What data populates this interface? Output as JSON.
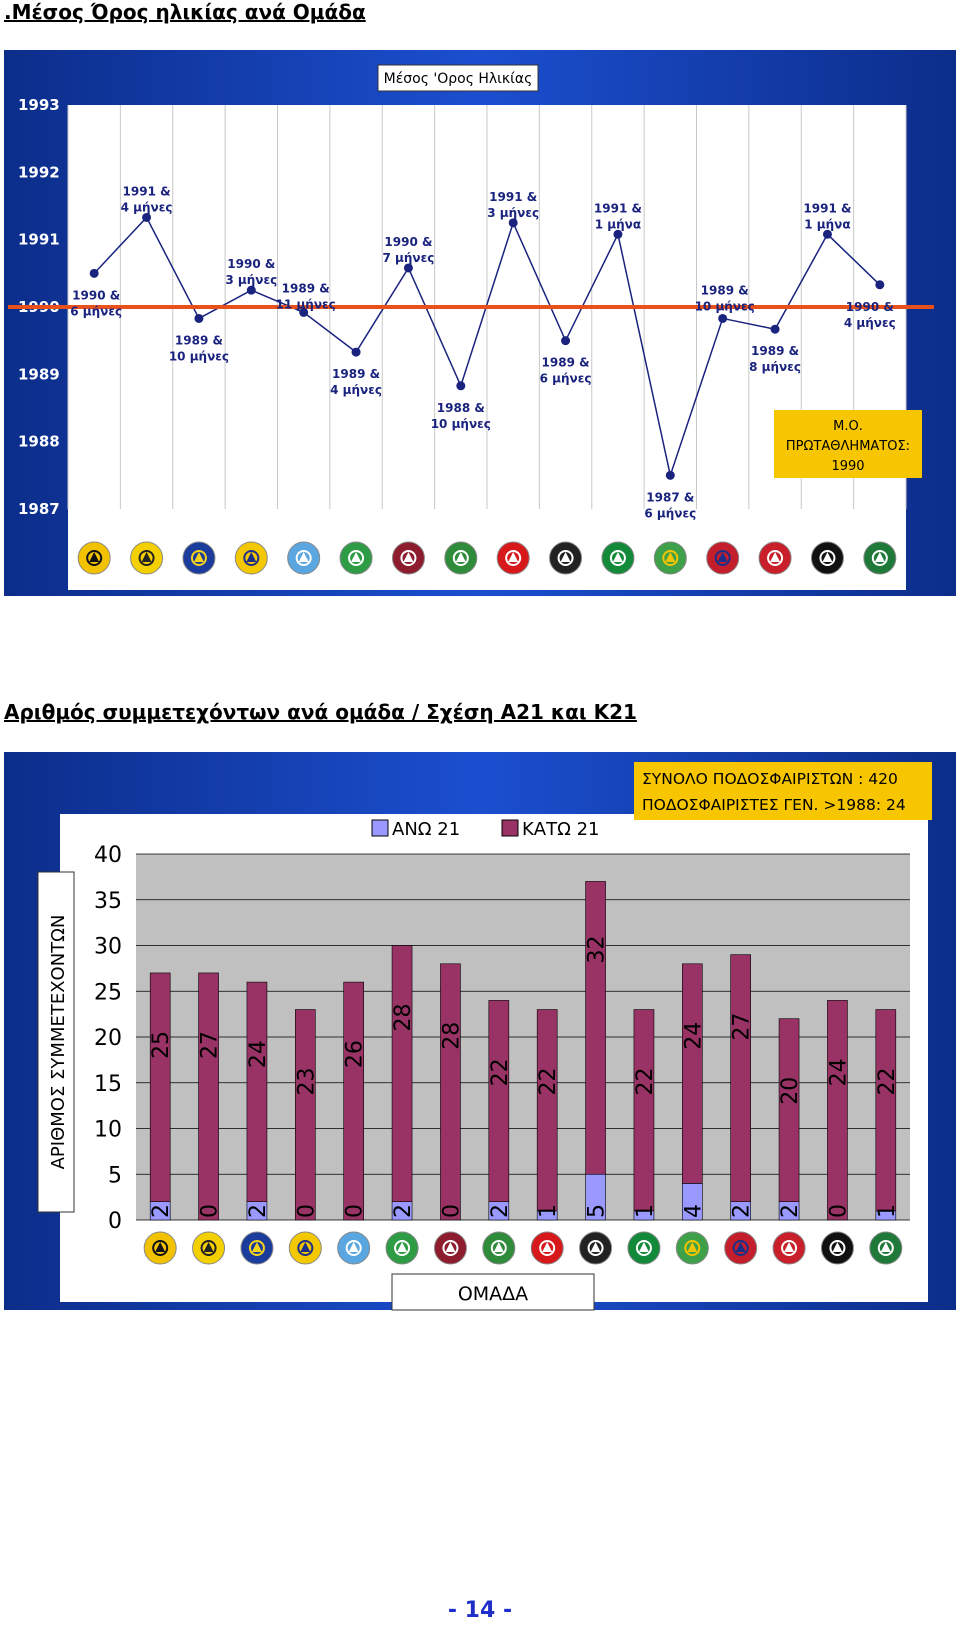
{
  "page": {
    "heading1": ".Μέσος Όρος ηλικίας ανά Ομάδα",
    "heading2": "Αριθμός συμμετεχόντων ανά ομάδα / Σχέση Α21 και Κ21",
    "page_number": "- 14 -"
  },
  "chart_data": [
    {
      "type": "line",
      "title": "Μέσος 'Ορος Ηλικίας",
      "ylim": [
        1987,
        1993
      ],
      "y_ticks": [
        "1987",
        "1988",
        "1989",
        "1990",
        "1991",
        "1992",
        "1993"
      ],
      "reference_line": {
        "value": 1990,
        "color": "#e8501c"
      },
      "x_axis": "team logos",
      "grid": "vertical",
      "values": [
        1990.5,
        1991.33,
        1989.83,
        1990.25,
        1989.92,
        1989.33,
        1990.58,
        1988.83,
        1991.25,
        1989.5,
        1991.08,
        1987.5,
        1989.83,
        1989.67,
        1991.08,
        1990.33
      ],
      "point_labels": [
        [
          "1990 &",
          "6 μήνες"
        ],
        [
          "1991 &",
          "4 μήνες"
        ],
        [
          "1989 &",
          "10 μήνες"
        ],
        [
          "1990 &",
          "3 μήνες"
        ],
        [
          "1989 &",
          "11 μήνες"
        ],
        [
          "1989 &",
          "4 μήνες"
        ],
        [
          "1990 &",
          "7 μήνες"
        ],
        [
          "1988 &",
          "10 μήνες"
        ],
        [
          "1991 &",
          "3 μήνες"
        ],
        [
          "1989 &",
          "6 μήνες"
        ],
        [
          "1991 &",
          "1 μήνα"
        ],
        [
          "1987 &",
          "6 μήνες"
        ],
        [
          "1989 &",
          "10 μήνες"
        ],
        [
          "1989 &",
          "8 μήνες"
        ],
        [
          "1991 &",
          "1 μήνα"
        ],
        [
          "1990 &",
          "4 μήνες"
        ]
      ],
      "annotation": [
        "Μ.Ο.",
        "ΠΡΩΤΑΘΛΗΜΑΤΟΣ:",
        "1990"
      ],
      "line_color": "#1a237e",
      "annotation_color": "#f7c600"
    },
    {
      "type": "bar",
      "stacked": true,
      "ylabel": "ΑΡΙΘΜΟΣ ΣΥΜΜΕΤΕΧΟΝΤΩΝ",
      "xlabel": "ΟΜΑΔΑ",
      "ylim": [
        0,
        40
      ],
      "y_ticks": [
        "0",
        "5",
        "10",
        "15",
        "20",
        "25",
        "30",
        "35",
        "40"
      ],
      "legend": "top",
      "grid": true,
      "series": [
        {
          "name": "ΑΝΩ 21",
          "color": "#9999ff",
          "values": [
            2,
            0,
            2,
            0,
            0,
            2,
            0,
            2,
            1,
            5,
            1,
            4,
            2,
            2,
            0,
            1
          ]
        },
        {
          "name": "ΚΑΤΩ 21",
          "color": "#993366",
          "values": [
            25,
            27,
            24,
            23,
            26,
            28,
            28,
            22,
            22,
            32,
            22,
            24,
            27,
            20,
            24,
            22
          ]
        }
      ],
      "bottom_labels": [
        "2",
        "0",
        "2",
        "0",
        "0",
        "2",
        "0",
        "2",
        "1",
        "5",
        "1",
        "4",
        "2",
        "2",
        "0",
        "1"
      ],
      "top_labels": [
        "25",
        "27",
        "24",
        "23",
        "26",
        "28",
        "28",
        "22",
        "22",
        "32",
        "22",
        "24",
        "27",
        "20",
        "24",
        "22"
      ],
      "info_box": [
        "ΣΥΝΟΛΟ ΠΟΔΟΣΦΑΙΡΙΣΤΩΝ : 420",
        "ΠΟΔΟΣΦΑΙΡΙΣΤΕΣ ΓΕΝ. >1988: 24"
      ]
    }
  ],
  "logos": [
    {
      "name": "aek-logo",
      "bg": "#f2c200",
      "fg": "#111111"
    },
    {
      "name": "aris-logo",
      "bg": "#f4d000",
      "fg": "#222222"
    },
    {
      "name": "asteras-logo",
      "bg": "#1b3c9c",
      "fg": "#f6d21b"
    },
    {
      "name": "panetolikos-logo",
      "bg": "#f4c800",
      "fg": "#1c2f88"
    },
    {
      "name": "atromitos-logo",
      "bg": "#5aa6e0",
      "fg": "#ffffff"
    },
    {
      "name": "panthrakikos-logo",
      "bg": "#2e9b45",
      "fg": "#ffffff"
    },
    {
      "name": "larissa-logo",
      "bg": "#8d1d2e",
      "fg": "#ffffff"
    },
    {
      "name": "levadiakos-logo",
      "bg": "#2f8c3a",
      "fg": "#ffffff"
    },
    {
      "name": "olympiacos-logo",
      "bg": "#d7191c",
      "fg": "#ffffff"
    },
    {
      "name": "ofi-logo",
      "bg": "#222222",
      "fg": "#ffffff"
    },
    {
      "name": "panathinaikos-logo",
      "bg": "#138a3a",
      "fg": "#ffffff"
    },
    {
      "name": "kerkyra-logo",
      "bg": "#3ea14a",
      "fg": "#f3c400"
    },
    {
      "name": "panionios-logo",
      "bg": "#c41e2c",
      "fg": "#1b2f88"
    },
    {
      "name": "xanthi-logo",
      "bg": "#c81f2a",
      "fg": "#ffffff"
    },
    {
      "name": "paok-logo",
      "bg": "#111111",
      "fg": "#ffffff"
    },
    {
      "name": "panserraikos-logo",
      "bg": "#1f7a3a",
      "fg": "#ffffff"
    }
  ]
}
